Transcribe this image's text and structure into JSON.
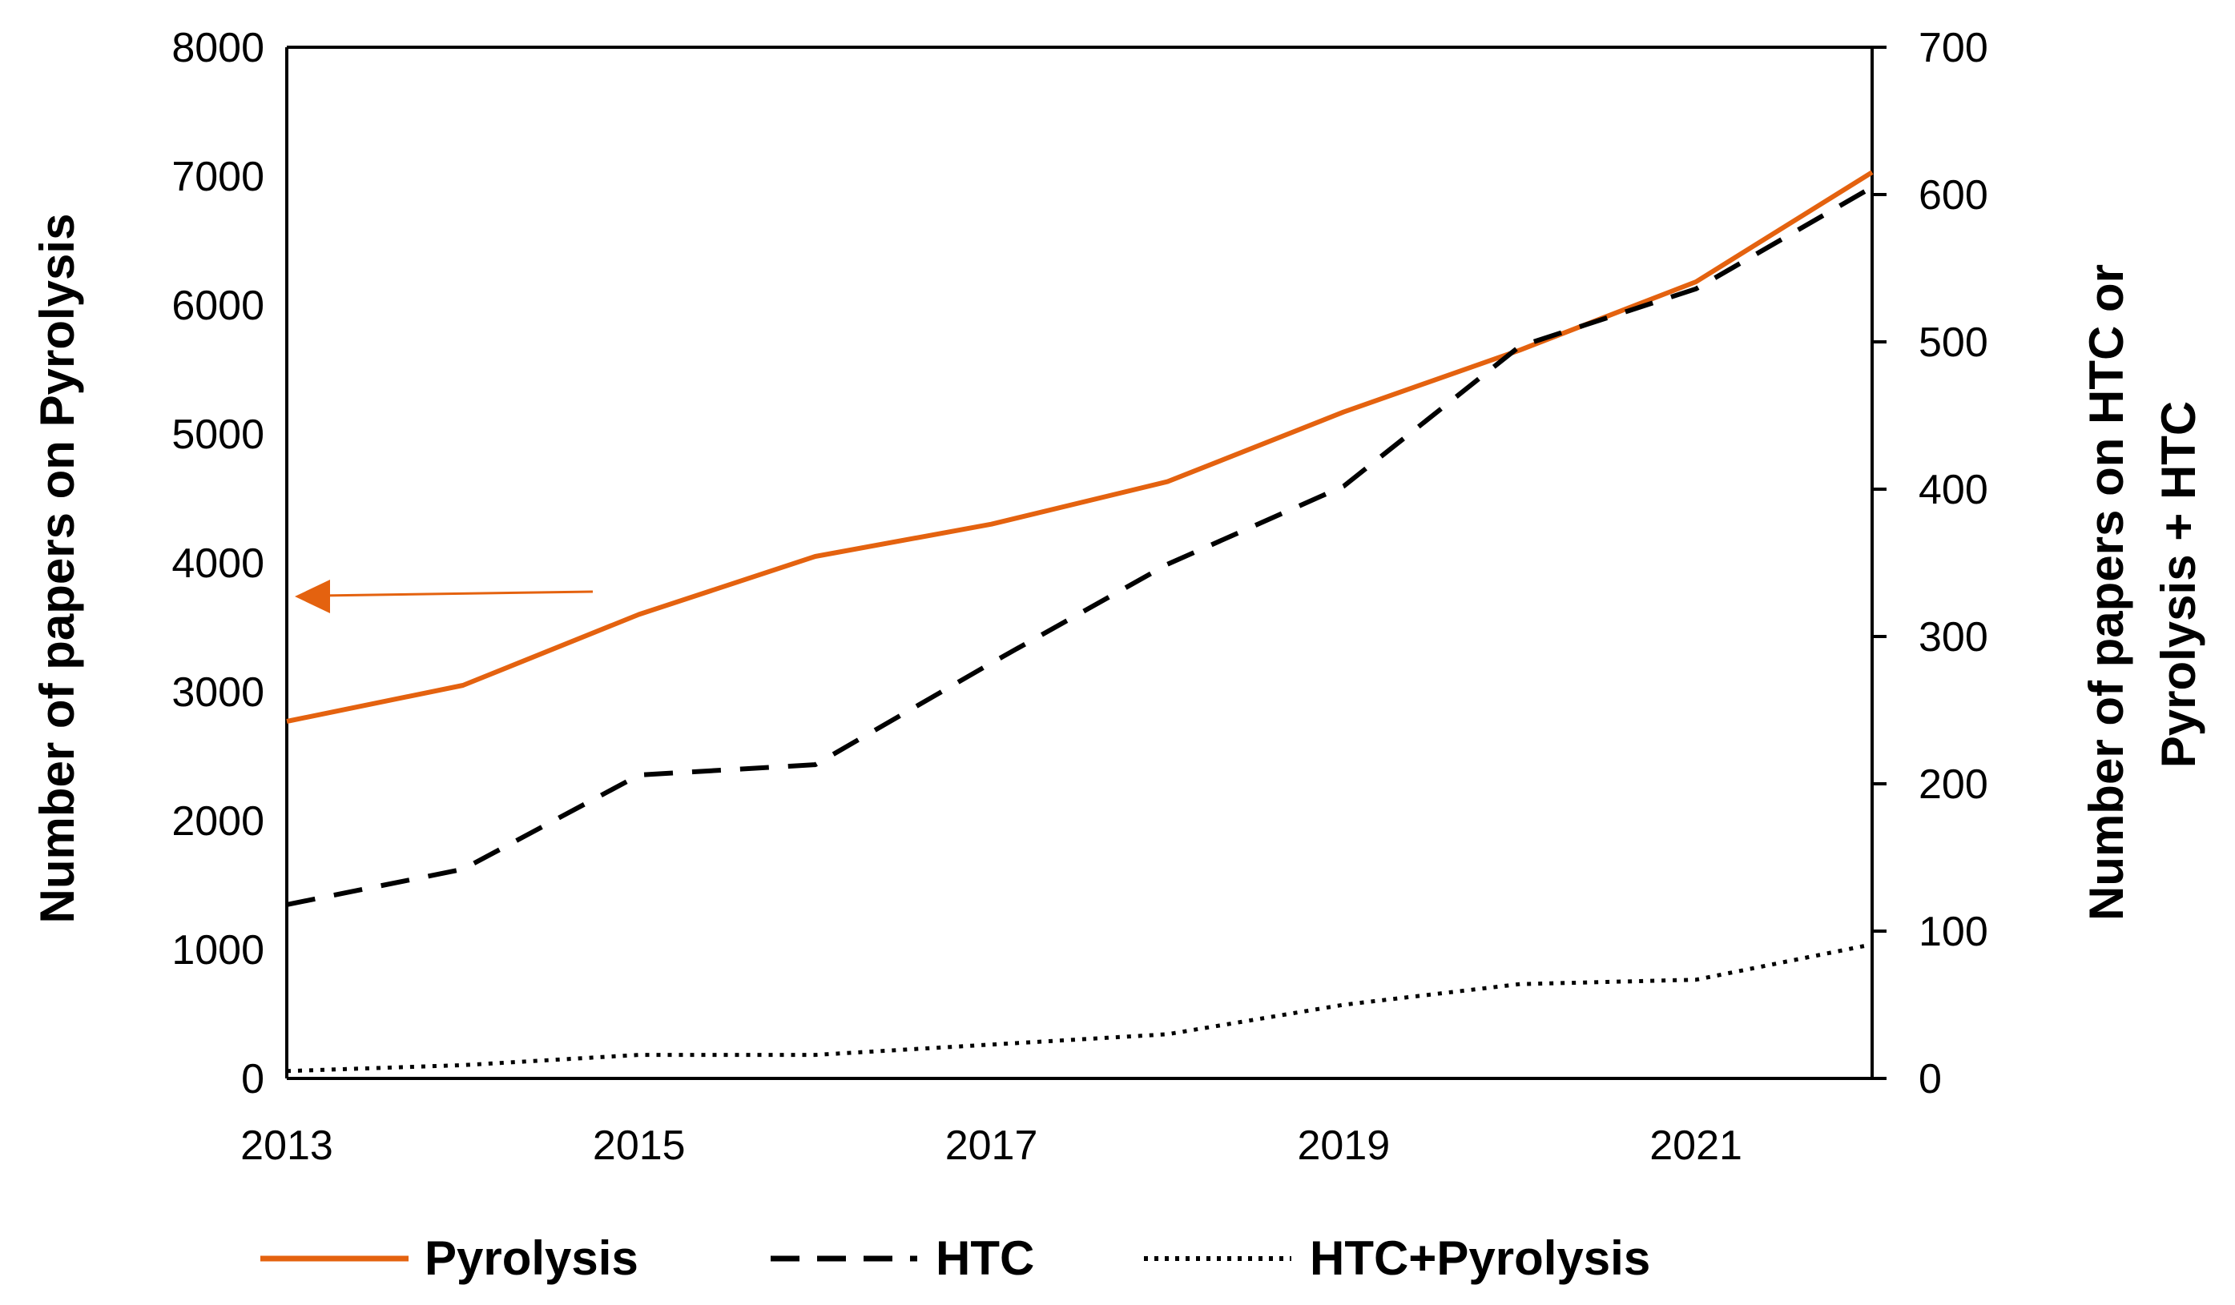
{
  "chart_data": {
    "type": "line",
    "title": "",
    "x": [
      2013,
      2014,
      2015,
      2016,
      2017,
      2018,
      2019,
      2020,
      2021,
      2022
    ],
    "xticks": [
      "2013",
      "2015",
      "2017",
      "2019",
      "2021"
    ],
    "xlim": [
      2013,
      2022
    ],
    "y_left": {
      "label": "Number of papers on Pyrolysis",
      "lim": [
        0,
        8000
      ],
      "ticks": [
        "0",
        "1000",
        "2000",
        "3000",
        "4000",
        "5000",
        "6000",
        "7000",
        "8000"
      ]
    },
    "y_right": {
      "label_line1": "Number of papers on HTC or",
      "label_line2": "Pyrolysis + HTC",
      "lim": [
        0,
        700
      ],
      "ticks": [
        "0",
        "100",
        "200",
        "300",
        "400",
        "500",
        "600",
        "700"
      ]
    },
    "series": [
      {
        "name": "Pyrolysis",
        "axis": "left",
        "style": "solid",
        "color": "#E4620F",
        "values": [
          2770,
          3050,
          3600,
          4050,
          4300,
          4630,
          5170,
          5650,
          6180,
          7030
        ]
      },
      {
        "name": "HTC",
        "axis": "right",
        "style": "dashed",
        "color": "#000000",
        "values": [
          118,
          142,
          206,
          213,
          282,
          349,
          402,
          497,
          536,
          605
        ]
      },
      {
        "name": "HTC+Pyrolysis",
        "axis": "right",
        "style": "dotted",
        "color": "#000000",
        "values": [
          5,
          9,
          16,
          16,
          23,
          30,
          50,
          64,
          67,
          91
        ]
      }
    ],
    "annotations": [
      {
        "type": "arrow",
        "color": "#E4620F",
        "points_to": "left-axis",
        "at_y_left": 3700
      }
    ],
    "legend": {
      "position": "bottom",
      "entries": [
        "Pyrolysis",
        "HTC",
        "HTC+Pyrolysis"
      ]
    }
  }
}
